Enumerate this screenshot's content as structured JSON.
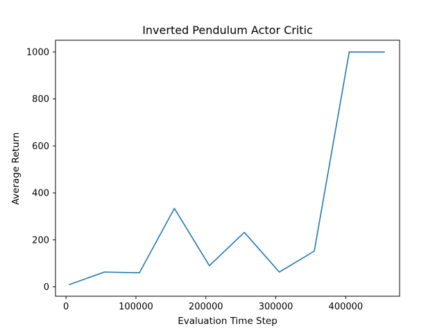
{
  "chart_data": {
    "type": "line",
    "title": "Inverted Pendulum Actor Critic",
    "xlabel": "Evaluation Time Step",
    "ylabel": "Average Return",
    "xlim": [
      -15000,
      477000
    ],
    "ylim": [
      -40,
      1050
    ],
    "xticks": [
      0,
      100000,
      200000,
      300000,
      400000
    ],
    "xtick_labels": [
      "0",
      "100000",
      "200000",
      "300000",
      "400000"
    ],
    "yticks": [
      0,
      200,
      400,
      600,
      800,
      1000
    ],
    "ytick_labels": [
      "0",
      "200",
      "400",
      "600",
      "800",
      "1000"
    ],
    "grid": false,
    "series": [
      {
        "color": "#1f77b4",
        "x": [
          5000,
          55000,
          105000,
          155000,
          205000,
          255000,
          305000,
          355000,
          405000,
          455000
        ],
        "y": [
          10,
          63,
          60,
          334,
          90,
          232,
          63,
          152,
          1000,
          1000
        ]
      }
    ]
  }
}
